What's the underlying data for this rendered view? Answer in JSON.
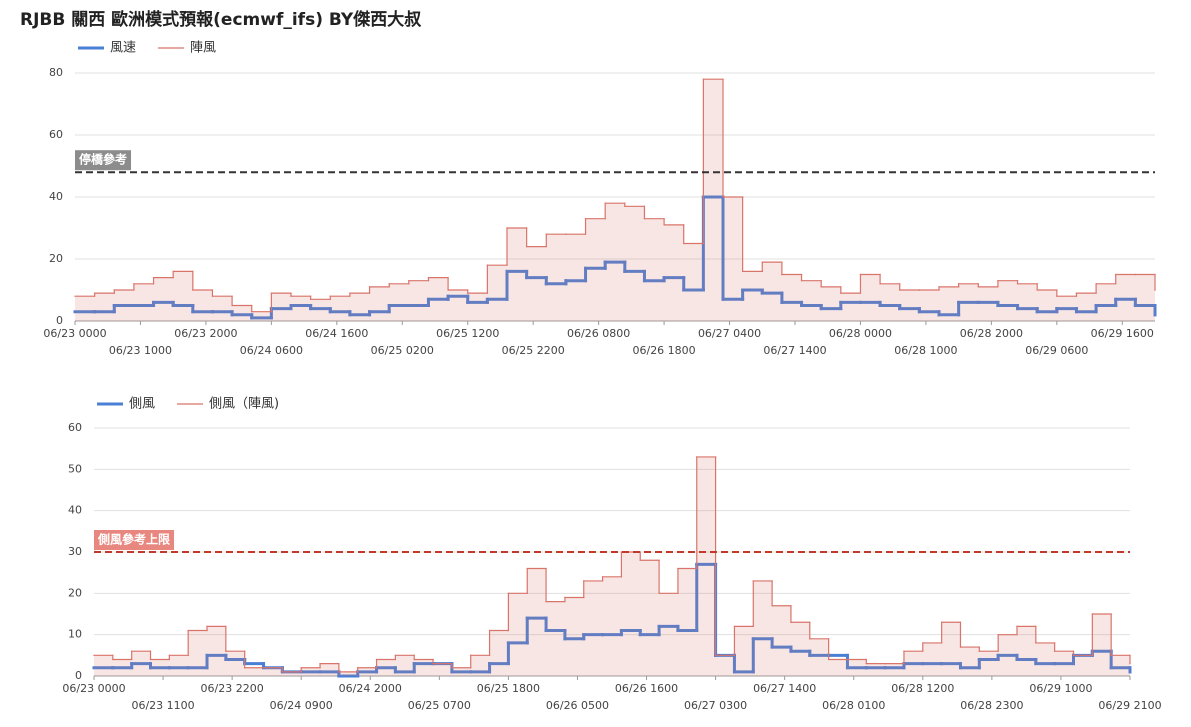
{
  "chart_data": [
    {
      "type": "line",
      "step": true,
      "title": "RJBB 關西 歐洲模式預報(ecmwf_ifs)  BY傑西大叔",
      "x": [
        0,
        3,
        6,
        9,
        12,
        15,
        18,
        21,
        24,
        27,
        30,
        33,
        36,
        39,
        42,
        45,
        48,
        51,
        54,
        57,
        60,
        63,
        66,
        69,
        72,
        75,
        78,
        81,
        84,
        87,
        90,
        93,
        96,
        99,
        102,
        105,
        108,
        111,
        114,
        117,
        120,
        123,
        126,
        129,
        132,
        135,
        138,
        141,
        144,
        147,
        150,
        153,
        156,
        159,
        162,
        165
      ],
      "xlim": [
        0,
        165
      ],
      "xticks": [
        {
          "value": 0,
          "label": "06/23 0000"
        },
        {
          "value": 10,
          "label": "06/23 1000"
        },
        {
          "value": 20,
          "label": "06/23 2000"
        },
        {
          "value": 30,
          "label": "06/24 0600"
        },
        {
          "value": 40,
          "label": "06/24 1600"
        },
        {
          "value": 50,
          "label": "06/25 0200"
        },
        {
          "value": 60,
          "label": "06/25 1200"
        },
        {
          "value": 70,
          "label": "06/25 2200"
        },
        {
          "value": 80,
          "label": "06/26 0800"
        },
        {
          "value": 90,
          "label": "06/26 1800"
        },
        {
          "value": 100,
          "label": "06/27 0400"
        },
        {
          "value": 110,
          "label": "06/27 1400"
        },
        {
          "value": 120,
          "label": "06/28 0000"
        },
        {
          "value": 130,
          "label": "06/28 1000"
        },
        {
          "value": 140,
          "label": "06/28 2000"
        },
        {
          "value": 150,
          "label": "06/29 0600"
        },
        {
          "value": 160,
          "label": "06/29 1600"
        }
      ],
      "ylim": [
        0,
        80
      ],
      "yticks": [
        0,
        20,
        40,
        60,
        80
      ],
      "grid": true,
      "reference": {
        "value": 48,
        "label": "停橋參考",
        "color": "#333333",
        "label_color": "#8c8c8c"
      },
      "series": [
        {
          "name": "風速",
          "color": "#4a7fd6",
          "values": [
            3,
            3,
            5,
            5,
            6,
            5,
            3,
            3,
            2,
            1,
            4,
            5,
            4,
            3,
            2,
            3,
            5,
            5,
            7,
            8,
            6,
            7,
            16,
            14,
            12,
            13,
            17,
            19,
            16,
            13,
            14,
            10,
            40,
            7,
            10,
            9,
            6,
            5,
            4,
            6,
            6,
            5,
            4,
            3,
            2,
            6,
            6,
            5,
            4,
            3,
            4,
            3,
            5,
            7,
            5,
            2
          ]
        },
        {
          "name": "陣風",
          "color": "#d9746a",
          "fill": true,
          "values": [
            8,
            9,
            10,
            12,
            14,
            16,
            10,
            8,
            5,
            3,
            9,
            8,
            7,
            8,
            9,
            11,
            12,
            13,
            14,
            10,
            9,
            18,
            30,
            24,
            28,
            28,
            33,
            38,
            37,
            33,
            31,
            25,
            78,
            40,
            16,
            19,
            15,
            13,
            11,
            9,
            15,
            12,
            10,
            10,
            11,
            12,
            11,
            13,
            12,
            10,
            8,
            9,
            12,
            15,
            15,
            10
          ]
        }
      ]
    },
    {
      "type": "line",
      "step": true,
      "x": [
        0,
        3,
        6,
        9,
        12,
        15,
        18,
        21,
        24,
        27,
        30,
        33,
        36,
        39,
        42,
        45,
        48,
        51,
        54,
        57,
        60,
        63,
        66,
        69,
        72,
        75,
        78,
        81,
        84,
        87,
        90,
        93,
        96,
        99,
        102,
        105,
        108,
        111,
        114,
        117,
        120,
        123,
        126,
        129,
        132,
        135,
        138,
        141,
        144,
        147,
        150,
        153,
        156,
        159,
        162,
        165
      ],
      "xlim": [
        0,
        165
      ],
      "xticks": [
        {
          "value": 0,
          "label": "06/23 0000"
        },
        {
          "value": 11,
          "label": "06/23 1100"
        },
        {
          "value": 22,
          "label": "06/23 2200"
        },
        {
          "value": 33,
          "label": "06/24 0900"
        },
        {
          "value": 44,
          "label": "06/24 2000"
        },
        {
          "value": 55,
          "label": "06/25 0700"
        },
        {
          "value": 66,
          "label": "06/25 1800"
        },
        {
          "value": 77,
          "label": "06/26 0500"
        },
        {
          "value": 88,
          "label": "06/26 1600"
        },
        {
          "value": 99,
          "label": "06/27 0300"
        },
        {
          "value": 110,
          "label": "06/27 1400"
        },
        {
          "value": 121,
          "label": "06/28 0100"
        },
        {
          "value": 132,
          "label": "06/28 1200"
        },
        {
          "value": 143,
          "label": "06/28 2300"
        },
        {
          "value": 154,
          "label": "06/29 1000"
        },
        {
          "value": 165,
          "label": "06/29 2100"
        }
      ],
      "ylim": [
        0,
        60
      ],
      "yticks": [
        0,
        10,
        20,
        30,
        40,
        50,
        60
      ],
      "grid": true,
      "reference": {
        "value": 30,
        "label": "側風參考上限",
        "color": "#c0392b",
        "label_color": "#e8877f"
      },
      "series": [
        {
          "name": "側風",
          "color": "#4a7fd6",
          "values": [
            2,
            2,
            3,
            2,
            2,
            2,
            5,
            4,
            3,
            2,
            1,
            1,
            1,
            0,
            1,
            2,
            1,
            3,
            3,
            1,
            1,
            3,
            8,
            14,
            11,
            9,
            10,
            10,
            11,
            10,
            12,
            11,
            27,
            5,
            1,
            9,
            7,
            6,
            5,
            5,
            2,
            2,
            2,
            3,
            3,
            3,
            2,
            4,
            5,
            4,
            3,
            3,
            5,
            6,
            2,
            1
          ]
        },
        {
          "name": "側風（陣風)",
          "color": "#d9746a",
          "fill": true,
          "values": [
            5,
            4,
            6,
            4,
            5,
            11,
            12,
            6,
            2,
            2,
            1,
            2,
            3,
            1,
            2,
            4,
            5,
            4,
            3,
            2,
            5,
            11,
            20,
            26,
            18,
            19,
            23,
            24,
            30,
            28,
            20,
            26,
            53,
            5,
            12,
            23,
            17,
            13,
            9,
            4,
            4,
            3,
            3,
            6,
            8,
            13,
            7,
            6,
            10,
            12,
            8,
            6,
            5,
            15,
            5,
            3
          ]
        }
      ]
    }
  ]
}
